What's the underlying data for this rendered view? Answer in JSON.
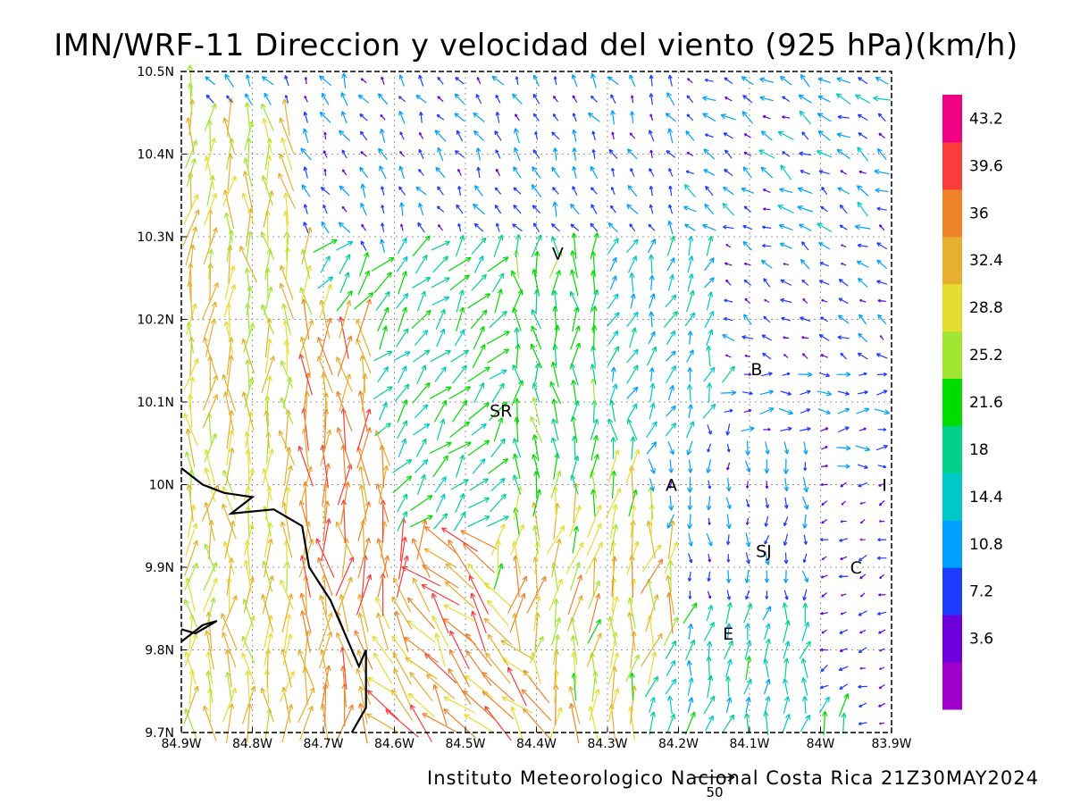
{
  "title": "IMN/WRF-11 Direccion y velocidad del viento (925 hPa)(km/h)",
  "credit": "Instituto Meteorologico Nacional Costa Rica 21Z30MAY2024",
  "reference_vector": {
    "label": "50",
    "value_kmh": 50
  },
  "map": {
    "lon_range": [
      -84.9,
      -83.9
    ],
    "lat_range": [
      9.7,
      10.5
    ],
    "x_ticks": [
      {
        "lon": -84.9,
        "label": "84.9W"
      },
      {
        "lon": -84.8,
        "label": "84.8W"
      },
      {
        "lon": -84.7,
        "label": "84.7W"
      },
      {
        "lon": -84.6,
        "label": "84.6W"
      },
      {
        "lon": -84.5,
        "label": "84.5W"
      },
      {
        "lon": -84.4,
        "label": "84.4W"
      },
      {
        "lon": -84.3,
        "label": "84.3W"
      },
      {
        "lon": -84.2,
        "label": "84.2W"
      },
      {
        "lon": -84.1,
        "label": "84.1W"
      },
      {
        "lon": -84.0,
        "label": "84W"
      },
      {
        "lon": -83.9,
        "label": "83.9W"
      }
    ],
    "y_ticks": [
      {
        "lat": 9.7,
        "label": "9.7N"
      },
      {
        "lat": 9.8,
        "label": "9.8N"
      },
      {
        "lat": 9.9,
        "label": "9.9N"
      },
      {
        "lat": 10.0,
        "label": "10N"
      },
      {
        "lat": 10.1,
        "label": "10.1N"
      },
      {
        "lat": 10.2,
        "label": "10.2N"
      },
      {
        "lat": 10.3,
        "label": "10.3N"
      },
      {
        "lat": 10.4,
        "label": "10.4N"
      },
      {
        "lat": 10.5,
        "label": "10.5N"
      }
    ],
    "places": [
      {
        "label": "V",
        "lon": -84.37,
        "lat": 10.28
      },
      {
        "label": "B",
        "lon": -84.09,
        "lat": 10.14
      },
      {
        "label": "SR",
        "lon": -84.45,
        "lat": 10.09
      },
      {
        "label": "A",
        "lon": -84.21,
        "lat": 10.0
      },
      {
        "label": "I",
        "lon": -83.91,
        "lat": 10.0
      },
      {
        "label": "SJ",
        "lon": -84.08,
        "lat": 9.92
      },
      {
        "label": "C",
        "lon": -83.95,
        "lat": 9.9
      },
      {
        "label": "E",
        "lon": -84.13,
        "lat": 9.82
      }
    ],
    "coastline": [
      [
        -84.9,
        10.02
      ],
      [
        -84.87,
        10.0
      ],
      [
        -84.84,
        9.99
      ],
      [
        -84.8,
        9.985
      ],
      [
        -84.83,
        9.965
      ],
      [
        -84.77,
        9.97
      ],
      [
        -84.73,
        9.95
      ],
      [
        -84.72,
        9.9
      ],
      [
        -84.69,
        9.86
      ],
      [
        -84.67,
        9.82
      ],
      [
        -84.65,
        9.78
      ],
      [
        -84.64,
        9.8
      ],
      [
        -84.64,
        9.73
      ],
      [
        -84.66,
        9.7
      ]
    ],
    "coastline_south": [
      [
        -84.9,
        9.81
      ],
      [
        -84.87,
        9.83
      ],
      [
        -84.85,
        9.835
      ],
      [
        -84.88,
        9.82
      ],
      [
        -84.9,
        9.825
      ]
    ],
    "grid": "dotted"
  },
  "colorbar": {
    "labels": [
      "43.2",
      "39.6",
      "36",
      "32.4",
      "28.8",
      "25.2",
      "21.6",
      "18",
      "14.4",
      "10.8",
      "7.2",
      "3.6"
    ],
    "levels": [
      3.6,
      7.2,
      10.8,
      14.4,
      18,
      21.6,
      25.2,
      28.8,
      32.4,
      36,
      39.6,
      43.2
    ],
    "colors": [
      "#a000c8",
      "#6e00dc",
      "#1e3cff",
      "#00a0ff",
      "#00c8c8",
      "#00d28c",
      "#00dc00",
      "#a0e632",
      "#e6dc32",
      "#e6af2d",
      "#f08228",
      "#fa3c3c",
      "#f00082"
    ]
  },
  "chart_data": {
    "type": "vector_field",
    "title": "IMN/WRF-11 Direccion y velocidad del viento (925 hPa)(km/h)",
    "x_range": [
      -84.9,
      -83.9
    ],
    "y_range": [
      9.7,
      10.5
    ],
    "units": "km/h",
    "grid": true,
    "regions": [
      {
        "lon": [
          -84.9,
          -84.75
        ],
        "lat": [
          9.7,
          10.45
        ],
        "dir_deg": 0,
        "speed": [
          26,
          36
        ]
      },
      {
        "lon": [
          -84.75,
          -84.62
        ],
        "lat": [
          9.7,
          10.2
        ],
        "dir_deg": 0,
        "speed": [
          33,
          42
        ]
      },
      {
        "lon": [
          -84.62,
          -84.45
        ],
        "lat": [
          9.72,
          9.85
        ],
        "dir_deg": 320,
        "speed": [
          30,
          42
        ]
      },
      {
        "lon": [
          -84.45,
          -84.2
        ],
        "lat": [
          9.8,
          9.95
        ],
        "dir_deg": 10,
        "speed": [
          24,
          38
        ]
      },
      {
        "lon": [
          -84.6,
          -84.45
        ],
        "lat": [
          9.95,
          10.3
        ],
        "dir_deg": 40,
        "speed": [
          16,
          24
        ]
      },
      {
        "lon": [
          -84.45,
          -84.3
        ],
        "lat": [
          10.0,
          10.3
        ],
        "dir_deg": 0,
        "speed": [
          18,
          26
        ]
      },
      {
        "lon": [
          -84.3,
          -84.15
        ],
        "lat": [
          10.1,
          10.3
        ],
        "dir_deg": 20,
        "speed": [
          12,
          20
        ]
      },
      {
        "lon": [
          -84.15,
          -83.9
        ],
        "lat": [
          10.15,
          10.3
        ],
        "dir_deg": 300,
        "speed": [
          4,
          12
        ]
      },
      {
        "lon": [
          -84.1,
          -83.9
        ],
        "lat": [
          10.05,
          10.15
        ],
        "dir_deg": 90,
        "speed": [
          6,
          14
        ]
      },
      {
        "lon": [
          -84.2,
          -84.0
        ],
        "lat": [
          9.85,
          10.05
        ],
        "dir_deg": 180,
        "speed": [
          6,
          14
        ]
      },
      {
        "lon": [
          -84.2,
          -84.0
        ],
        "lat": [
          9.7,
          9.85
        ],
        "dir_deg": 10,
        "speed": [
          14,
          22
        ]
      },
      {
        "lon": [
          -84.0,
          -83.9
        ],
        "lat": [
          9.75,
          10.0
        ],
        "dir_deg": 250,
        "speed": [
          3,
          9
        ]
      },
      {
        "lon": [
          -84.75,
          -84.2
        ],
        "lat": [
          10.3,
          10.5
        ],
        "dir_deg": 330,
        "speed": [
          6,
          14
        ]
      },
      {
        "lon": [
          -84.2,
          -83.9
        ],
        "lat": [
          10.3,
          10.5
        ],
        "dir_deg": 300,
        "speed": [
          6,
          16
        ]
      }
    ]
  }
}
